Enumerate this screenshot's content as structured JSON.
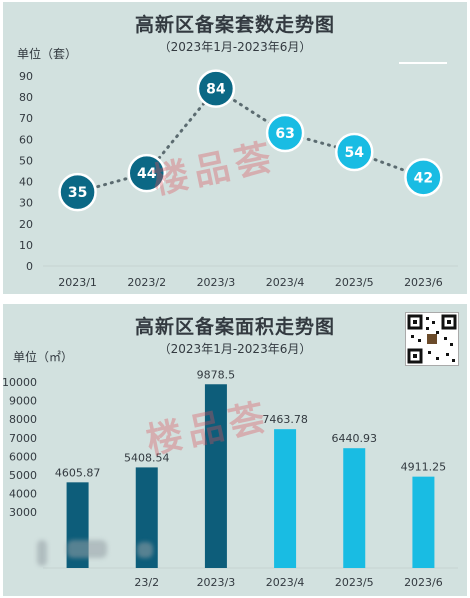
{
  "charts": [
    {
      "title": "高新区备案套数走势图",
      "subtitle": "（2023年1月-2023年6月）",
      "unit": "单位（套）",
      "watermark": "楼品荟",
      "chart_data": {
        "type": "line",
        "categories": [
          "2023/1",
          "2023/2",
          "2023/3",
          "2023/4",
          "2023/5",
          "2023/6"
        ],
        "values": [
          35,
          44,
          84,
          63,
          54,
          42
        ],
        "ylim": [
          0,
          90
        ],
        "yticks": [
          0,
          10,
          20,
          30,
          40,
          50,
          60,
          70,
          80,
          90
        ],
        "colors": [
          "#0b6885",
          "#0b6885",
          "#0b6885",
          "#19bce3",
          "#19bce3",
          "#19bce3"
        ],
        "line_style": "dotted",
        "grid": false
      }
    },
    {
      "title": "高新区备案面积走势图",
      "subtitle": "（2023年1月-2023年6月）",
      "unit": "单位（㎡）",
      "watermark": "楼品荟",
      "chart_data": {
        "type": "bar",
        "categories": [
          "2023/1",
          "2023/2",
          "2023/3",
          "2023/4",
          "2023/5",
          "2023/6"
        ],
        "category_labels_visible": [
          "",
          "23/2",
          "2023/3",
          "2023/4",
          "2023/5",
          "2023/6"
        ],
        "values": [
          4605.87,
          5408.54,
          9878.5,
          7463.78,
          6440.93,
          4911.25
        ],
        "value_labels": [
          "4605.87",
          "5408.54",
          "9878.5",
          "7463.78",
          "6440.93",
          "4911.25"
        ],
        "ylim": [
          0,
          10000
        ],
        "yticks": [
          0,
          1000,
          2000,
          3000,
          4000,
          5000,
          6000,
          7000,
          8000,
          9000,
          10000
        ],
        "ytick_labels_visible": [
          "",
          "",
          "",
          "3000",
          "4000",
          "5000",
          "6000",
          "7000",
          "8000",
          "9000",
          "10000"
        ],
        "colors": [
          "#0d5d7a",
          "#0d5d7a",
          "#0d5d7a",
          "#19bce3",
          "#19bce3",
          "#19bce3"
        ],
        "grid": false
      }
    }
  ]
}
